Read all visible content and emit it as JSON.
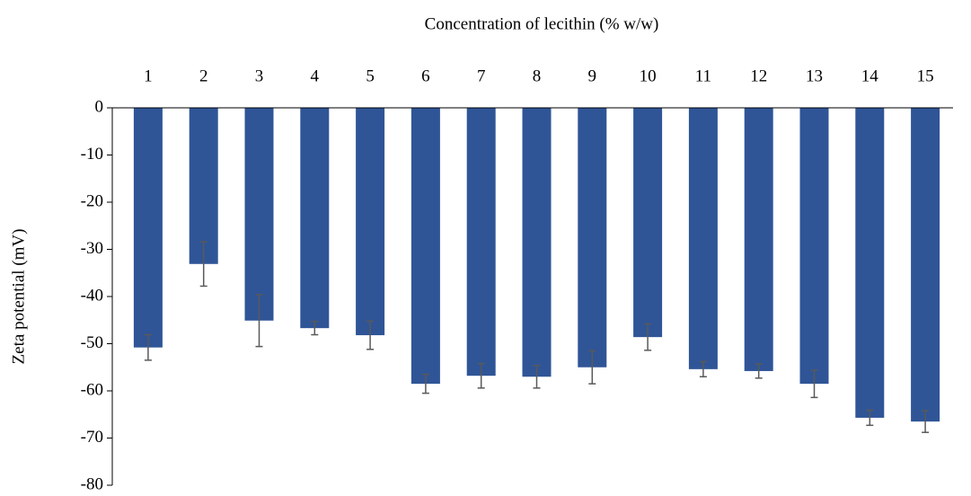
{
  "chart_data": {
    "type": "bar",
    "x_label": "Concentration of lecithin (% w/w)",
    "y_label": "Zeta potential (mV)",
    "categories": [
      "1",
      "2",
      "3",
      "4",
      "5",
      "6",
      "7",
      "8",
      "9",
      "10",
      "11",
      "12",
      "13",
      "14",
      "15"
    ],
    "values": [
      -50.8,
      -33.1,
      -45.1,
      -46.7,
      -48.2,
      -58.5,
      -56.8,
      -57.0,
      -55.0,
      -48.6,
      -55.4,
      -55.8,
      -58.5,
      -65.7,
      -66.5
    ],
    "errors": [
      2.7,
      4.7,
      5.5,
      1.4,
      3.0,
      2.0,
      2.6,
      2.4,
      3.5,
      2.8,
      1.6,
      1.5,
      2.9,
      1.6,
      2.3
    ],
    "color": "#2f5597",
    "error_color": "#595959",
    "ylim": [
      -80,
      0
    ],
    "yticks": [
      0,
      -10,
      -20,
      -30,
      -40,
      -50,
      -60,
      -70,
      -80
    ],
    "x_axis_position": "top",
    "grid": false
  }
}
